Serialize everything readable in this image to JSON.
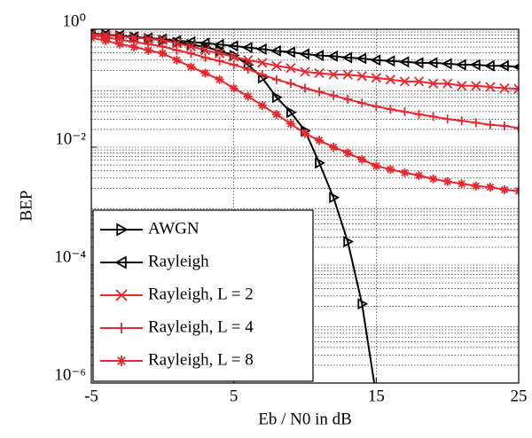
{
  "chart_data": {
    "type": "line",
    "x_label": "Eb / N0 in dB",
    "y_label": "BEP",
    "x": [
      -5,
      -4,
      -3,
      -2,
      -1,
      0,
      1,
      2,
      3,
      4,
      5,
      6,
      7,
      8,
      9,
      10,
      11,
      12,
      13,
      14,
      15,
      16,
      17,
      18,
      19,
      20,
      21,
      22,
      23,
      24,
      25
    ],
    "series": [
      {
        "name": "AWGN",
        "color": "#000000",
        "marker": "triangle-right",
        "values": [
          0.85,
          0.81,
          0.77,
          0.73,
          0.69,
          0.65,
          0.6,
          0.55,
          0.5,
          0.43,
          0.36,
          0.25,
          0.15,
          0.07,
          0.039,
          0.019,
          0.0054,
          0.0014,
          0.00025,
          2.2e-05,
          6e-07,
          null,
          null,
          null,
          null,
          null,
          null,
          null,
          null,
          null,
          null
        ]
      },
      {
        "name": "Rayleigh",
        "color": "#000000",
        "marker": "triangle-left",
        "values": [
          0.85,
          0.81,
          0.78,
          0.74,
          0.71,
          0.68,
          0.64,
          0.61,
          0.58,
          0.55,
          0.52,
          0.49,
          0.46,
          0.43,
          0.41,
          0.38,
          0.36,
          0.35,
          0.33,
          0.32,
          0.3,
          0.29,
          0.28,
          0.27,
          0.27,
          0.26,
          0.25,
          0.25,
          0.24,
          0.24,
          0.23
        ]
      },
      {
        "name": "Rayleigh, L = 2",
        "color": "#e8262c",
        "marker": "x",
        "values": [
          0.83,
          0.79,
          0.76,
          0.72,
          0.69,
          0.66,
          0.58,
          0.51,
          0.44,
          0.39,
          0.34,
          0.3,
          0.27,
          0.24,
          0.22,
          0.19,
          0.18,
          0.17,
          0.17,
          0.16,
          0.15,
          0.14,
          0.13,
          0.13,
          0.12,
          0.12,
          0.11,
          0.11,
          0.105,
          0.1,
          0.098
        ]
      },
      {
        "name": "Rayleigh, L = 4",
        "color": "#e8262c",
        "marker": "plus",
        "values": [
          0.79,
          0.73,
          0.67,
          0.61,
          0.56,
          0.51,
          0.44,
          0.39,
          0.33,
          0.29,
          0.25,
          0.21,
          0.17,
          0.14,
          0.12,
          0.1,
          0.087,
          0.075,
          0.065,
          0.056,
          0.049,
          0.044,
          0.04,
          0.036,
          0.033,
          0.03,
          0.028,
          0.026,
          0.024,
          0.023,
          0.021
        ]
      },
      {
        "name": "Rayleigh, L = 8",
        "color": "#e8262c",
        "marker": "asterisk",
        "values": [
          0.72,
          0.64,
          0.56,
          0.5,
          0.44,
          0.39,
          0.3,
          0.23,
          0.18,
          0.14,
          0.1,
          0.073,
          0.051,
          0.036,
          0.025,
          0.017,
          0.013,
          0.01,
          0.008,
          0.0062,
          0.0048,
          0.0042,
          0.0037,
          0.0033,
          0.0029,
          0.0026,
          0.0024,
          0.0022,
          0.0021,
          0.0019,
          0.0018
        ]
      }
    ],
    "xlim": [
      -5,
      25
    ],
    "xticks": [
      -5,
      5,
      15,
      25
    ],
    "ylim": [
      1e-06,
      1
    ],
    "log_y": true,
    "yticks": [
      {
        "value": 1,
        "label": "10⁰"
      },
      {
        "value": 0.01,
        "label": "10⁻²"
      },
      {
        "value": 0.0001,
        "label": "10⁻⁴"
      },
      {
        "value": 1e-06,
        "label": "10⁻⁶"
      }
    ],
    "grid": true,
    "minor_grid": true,
    "legend": "lower-left"
  }
}
